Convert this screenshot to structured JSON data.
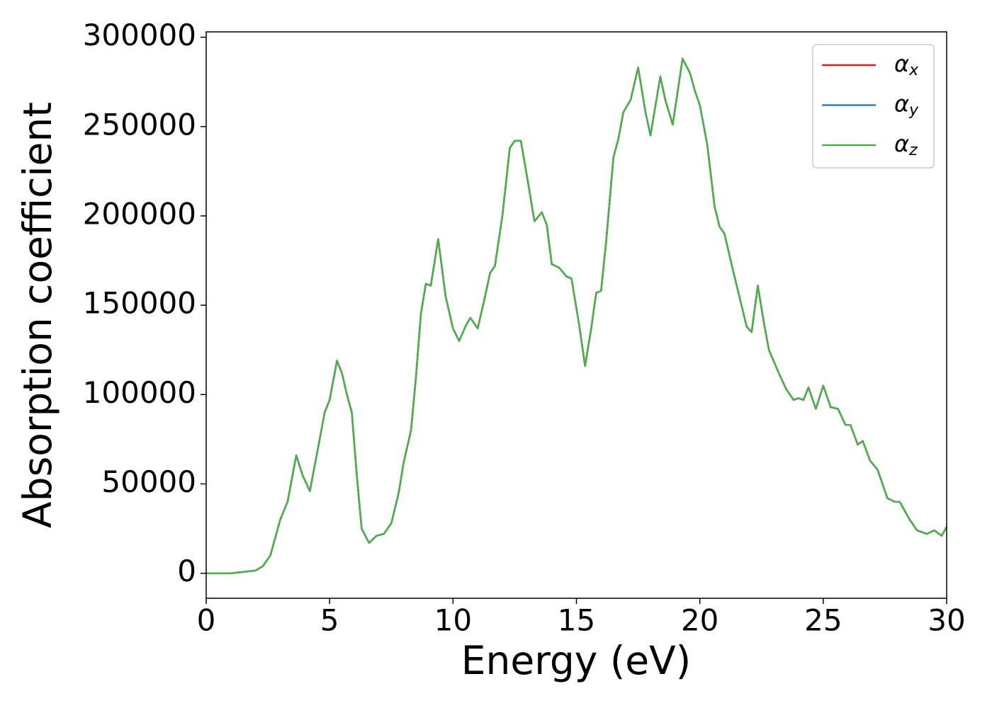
{
  "chart_data": {
    "type": "line",
    "xlabel": "Energy (eV)",
    "ylabel": "Absorption coefficient",
    "xlim": [
      0,
      30
    ],
    "xticks": [
      0,
      5,
      10,
      15,
      20,
      25,
      30
    ],
    "ylim": [
      -14000,
      303000
    ],
    "yticks": [
      0,
      50000,
      100000,
      150000,
      200000,
      250000,
      300000
    ],
    "legend": "upper right",
    "x": [
      0,
      1,
      2,
      2.3,
      2.6,
      3.0,
      3.3,
      3.65,
      3.9,
      4.2,
      4.6,
      4.8,
      5.0,
      5.3,
      5.5,
      5.7,
      5.9,
      6.1,
      6.3,
      6.6,
      6.9,
      7.2,
      7.5,
      7.8,
      8.0,
      8.3,
      8.5,
      8.7,
      8.9,
      9.1,
      9.4,
      9.7,
      10.0,
      10.25,
      10.5,
      10.7,
      11.0,
      11.3,
      11.5,
      11.7,
      12.0,
      12.3,
      12.5,
      12.75,
      13.0,
      13.3,
      13.6,
      13.8,
      14.0,
      14.3,
      14.6,
      14.8,
      15.1,
      15.35,
      15.6,
      15.8,
      16.0,
      16.2,
      16.5,
      16.7,
      16.9,
      17.2,
      17.5,
      17.8,
      18.0,
      18.4,
      18.6,
      18.9,
      19.3,
      19.6,
      19.8,
      20.0,
      20.3,
      20.6,
      20.8,
      21.0,
      21.3,
      21.6,
      21.9,
      22.1,
      22.35,
      22.6,
      22.8,
      23.2,
      23.5,
      23.8,
      24.0,
      24.2,
      24.4,
      24.7,
      25.0,
      25.3,
      25.6,
      25.9,
      26.1,
      26.4,
      26.6,
      26.9,
      27.2,
      27.6,
      27.9,
      28.1,
      28.5,
      28.8,
      29.2,
      29.5,
      29.8,
      30
    ],
    "series": [
      {
        "name": "αx",
        "color": "#e41a1c",
        "values": [
          0,
          0,
          1500,
          4000,
          10000,
          30000,
          40000,
          66000,
          55000,
          46000,
          75000,
          90000,
          97000,
          119000,
          112000,
          100000,
          90000,
          55000,
          25000,
          17000,
          21000,
          22000,
          28000,
          45000,
          62000,
          80000,
          110000,
          145000,
          162000,
          161000,
          187000,
          155000,
          137000,
          130000,
          138000,
          143000,
          137000,
          155000,
          168000,
          172000,
          200000,
          238000,
          242000,
          242000,
          222000,
          197000,
          202000,
          195000,
          173000,
          171000,
          166000,
          165000,
          140000,
          116000,
          137000,
          157000,
          158000,
          185000,
          233000,
          243000,
          258000,
          265000,
          283000,
          258000,
          245000,
          278000,
          265000,
          251000,
          288000,
          280000,
          270000,
          262000,
          240000,
          205000,
          194000,
          190000,
          172000,
          155000,
          138000,
          135000,
          161000,
          140000,
          125000,
          112000,
          103000,
          97000,
          98000,
          97000,
          104000,
          92000,
          105000,
          93000,
          92000,
          83000,
          83000,
          72000,
          74000,
          63000,
          58000,
          42000,
          40000,
          40000,
          30000,
          24000,
          22000,
          24000,
          21000,
          26000
        ]
      },
      {
        "name": "αy",
        "color": "#377eb8",
        "values": [
          0,
          0,
          1500,
          4000,
          10000,
          30000,
          40000,
          66000,
          55000,
          46000,
          75000,
          90000,
          97000,
          119000,
          112000,
          100000,
          90000,
          55000,
          25000,
          17000,
          21000,
          22000,
          28000,
          45000,
          62000,
          80000,
          110000,
          145000,
          162000,
          161000,
          187000,
          155000,
          137000,
          130000,
          138000,
          143000,
          137000,
          155000,
          168000,
          172000,
          200000,
          238000,
          242000,
          242000,
          222000,
          197000,
          202000,
          195000,
          173000,
          171000,
          166000,
          165000,
          140000,
          116000,
          137000,
          157000,
          158000,
          185000,
          233000,
          243000,
          258000,
          265000,
          283000,
          258000,
          245000,
          278000,
          265000,
          251000,
          288000,
          280000,
          270000,
          262000,
          240000,
          205000,
          194000,
          190000,
          172000,
          155000,
          138000,
          135000,
          161000,
          140000,
          125000,
          112000,
          103000,
          97000,
          98000,
          97000,
          104000,
          92000,
          105000,
          93000,
          92000,
          83000,
          83000,
          72000,
          74000,
          63000,
          58000,
          42000,
          40000,
          40000,
          30000,
          24000,
          22000,
          24000,
          21000,
          26000
        ]
      },
      {
        "name": "αz",
        "color": "#4daf4a",
        "values": [
          0,
          0,
          1500,
          4000,
          10000,
          30000,
          40000,
          66000,
          55000,
          46000,
          75000,
          90000,
          97000,
          119000,
          112000,
          100000,
          90000,
          55000,
          25000,
          17000,
          21000,
          22000,
          28000,
          45000,
          62000,
          80000,
          110000,
          145000,
          162000,
          161000,
          187000,
          155000,
          137000,
          130000,
          138000,
          143000,
          137000,
          155000,
          168000,
          172000,
          200000,
          238000,
          242000,
          242000,
          222000,
          197000,
          202000,
          195000,
          173000,
          171000,
          166000,
          165000,
          140000,
          116000,
          137000,
          157000,
          158000,
          185000,
          233000,
          243000,
          258000,
          265000,
          283000,
          258000,
          245000,
          278000,
          265000,
          251000,
          288000,
          280000,
          270000,
          262000,
          240000,
          205000,
          194000,
          190000,
          172000,
          155000,
          138000,
          135000,
          161000,
          140000,
          125000,
          112000,
          103000,
          97000,
          98000,
          97000,
          104000,
          92000,
          105000,
          93000,
          92000,
          83000,
          83000,
          72000,
          74000,
          63000,
          58000,
          42000,
          40000,
          40000,
          30000,
          24000,
          22000,
          24000,
          21000,
          26000
        ]
      }
    ]
  }
}
